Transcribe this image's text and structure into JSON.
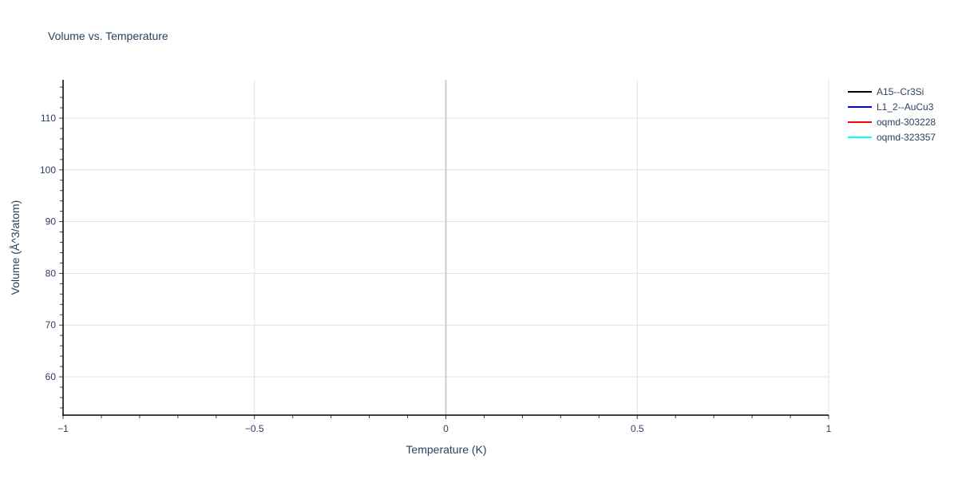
{
  "chart_data": {
    "type": "line",
    "title": "Volume vs. Temperature",
    "xlabel": "Temperature (K)",
    "ylabel": "Volume (Å^3/atom)",
    "xlim": [
      -1,
      1
    ],
    "ylim": [
      52.6,
      117.4
    ],
    "x_ticks": [
      -1,
      -0.5,
      0,
      0.5,
      1
    ],
    "x_tick_labels": [
      "−1",
      "−0.5",
      "0",
      "0.5",
      "1"
    ],
    "y_ticks": [
      60,
      70,
      80,
      90,
      100,
      110
    ],
    "y_tick_labels": [
      "60",
      "70",
      "80",
      "90",
      "100",
      "110"
    ],
    "grid": true,
    "legend_position": "top-right",
    "series": [
      {
        "name": "A15--Cr3Si",
        "color": "#000000",
        "x": [],
        "y": []
      },
      {
        "name": "L1_2--AuCu3",
        "color": "#0000ff",
        "x": [],
        "y": []
      },
      {
        "name": "oqmd-303228",
        "color": "#ff0000",
        "x": [],
        "y": []
      },
      {
        "name": "oqmd-323357",
        "color": "#00ffff",
        "x": [],
        "y": []
      }
    ]
  }
}
